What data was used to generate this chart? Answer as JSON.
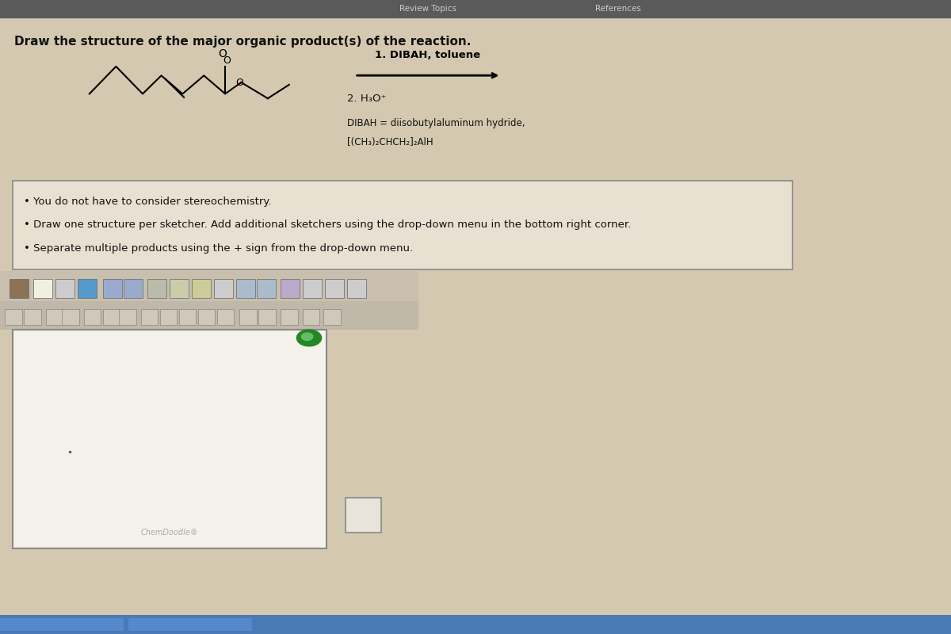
{
  "bg_color": "#d4c9b0",
  "top_bar_color": "#5a5a5a",
  "top_bar_height": 0.025,
  "nav_text_left": "Review Topics",
  "nav_text_right": "References",
  "nav_text_color": "#cccccc",
  "title_text": "Draw the structure of the major organic product(s) of the reaction.",
  "title_color": "#111111",
  "title_fontsize": 11,
  "reaction_step1": "1. DIBAH, toluene",
  "reaction_step2": "2. H₃O⁺",
  "reaction_dibah": "DIBAH = diisobutylaluminum hydride,",
  "reaction_formula": "[(CH₃)₂CHCH₂]₂AlH",
  "bullet1": "You do not have to consider stereochemistry.",
  "bullet2": "Draw one structure per sketcher. Add additional sketchers using the drop-down menu in the bottom right corner.",
  "bullet3": "Separate multiple products using the + sign from the drop-down menu.",
  "box_bg": "#e8e0d0",
  "box_border": "#888888",
  "sketcher_bg": "#f5f2ec",
  "sketcher_border": "#888888",
  "chemdoodle_text": "ChemDoodle®",
  "toolbar_bg": "#d0c8b8",
  "text_color": "#111111",
  "small_text_color": "#333333"
}
